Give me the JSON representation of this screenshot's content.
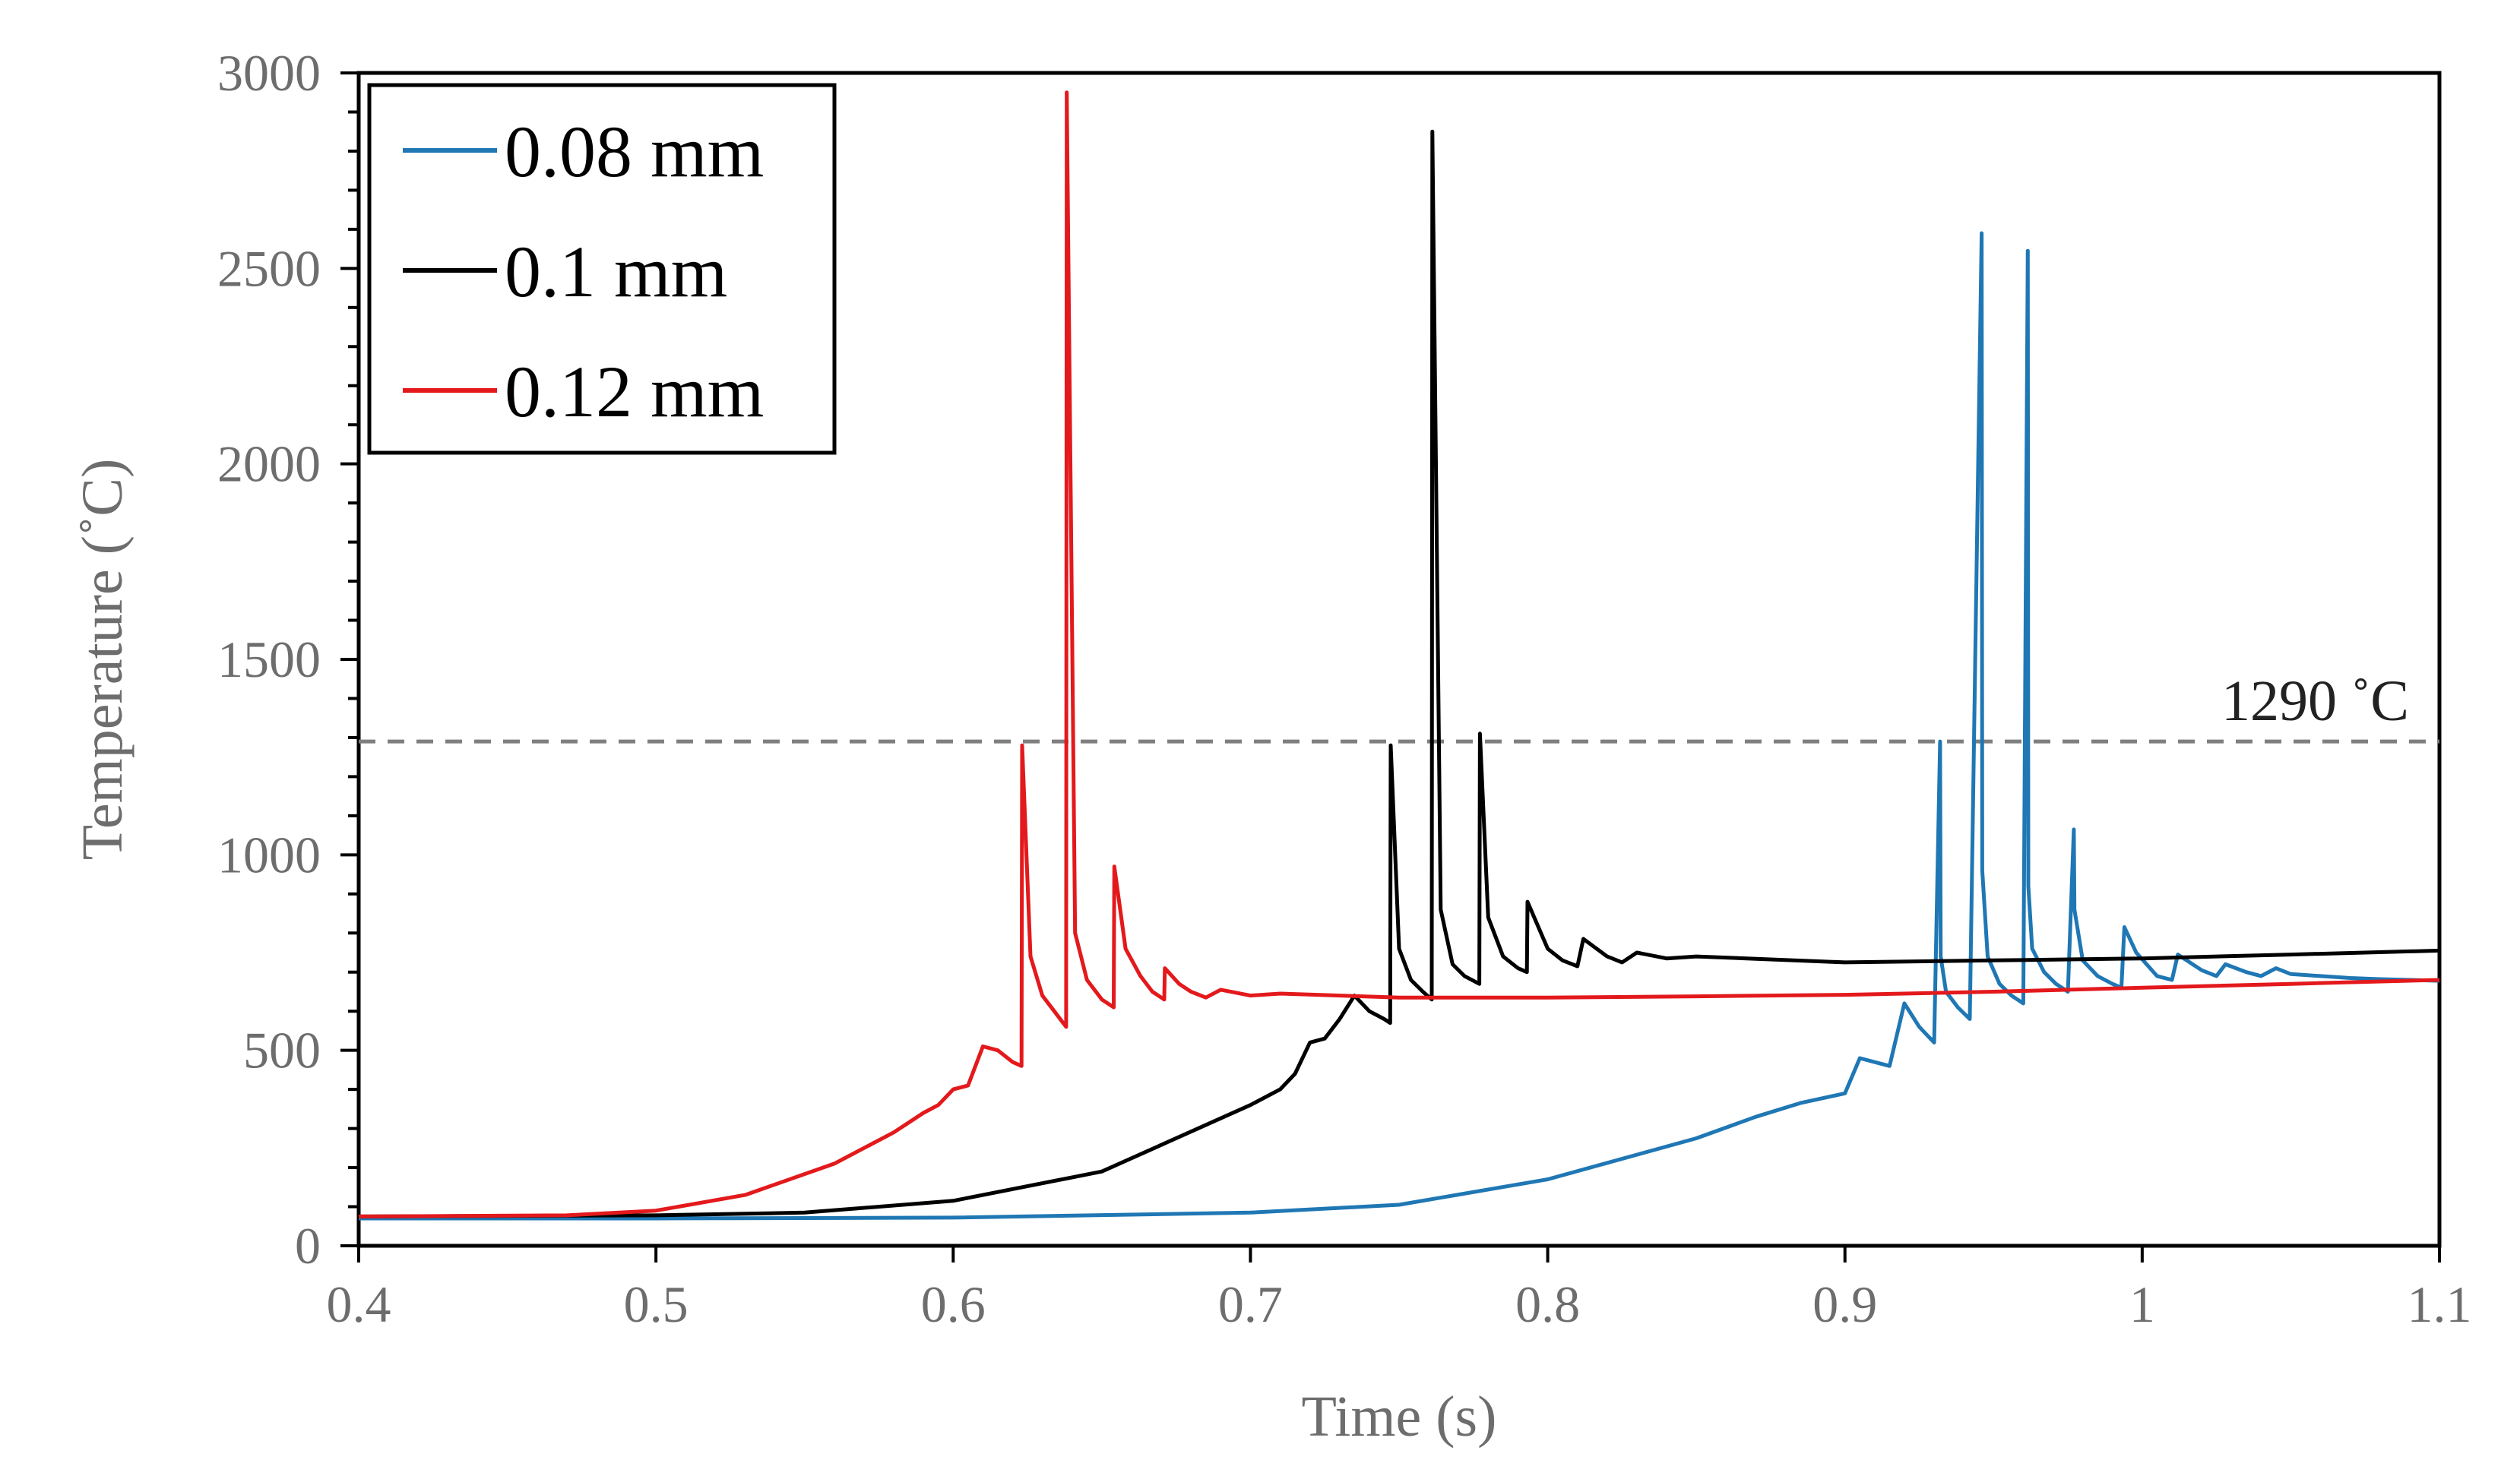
{
  "chart_data": {
    "type": "line",
    "title": "",
    "xlabel": "Time (s)",
    "ylabel": "Temperature (˚C)",
    "xlim": [
      0.4,
      1.1
    ],
    "ylim": [
      0,
      3000
    ],
    "xticks": [
      0.4,
      0.5,
      0.6,
      0.7,
      0.8,
      0.9,
      1.0,
      1.1
    ],
    "xtick_labels": [
      "0.4",
      "0.5",
      "0.6",
      "0.7",
      "0.8",
      "0.9",
      "1",
      "1.1"
    ],
    "yticks": [
      0,
      500,
      1000,
      1500,
      2000,
      2500,
      3000
    ],
    "ytick_labels": [
      "0",
      "500",
      "1000",
      "1500",
      "2000",
      "2500",
      "3000"
    ],
    "grid": false,
    "legend_position": "top-left",
    "reference_line": {
      "y": 1290,
      "label": "1290 ˚C",
      "color": "#7f7f7f",
      "style": "dashed"
    },
    "series": [
      {
        "name": "0.08 mm",
        "color": "#1f77b4",
        "x": [
          0.4,
          0.5,
          0.6,
          0.7,
          0.75,
          0.8,
          0.85,
          0.87,
          0.885,
          0.9,
          0.905,
          0.915,
          0.92,
          0.925,
          0.93,
          0.932,
          0.9322,
          0.934,
          0.938,
          0.942,
          0.946,
          0.9462,
          0.948,
          0.952,
          0.956,
          0.96,
          0.9615,
          0.9617,
          0.963,
          0.967,
          0.971,
          0.975,
          0.977,
          0.9772,
          0.98,
          0.985,
          0.99,
          0.993,
          0.994,
          0.998,
          1.005,
          1.01,
          1.012,
          1.02,
          1.025,
          1.028,
          1.035,
          1.04,
          1.045,
          1.05,
          1.06,
          1.07,
          1.08,
          1.09,
          1.1
        ],
        "y": [
          70,
          70,
          72,
          85,
          105,
          170,
          275,
          330,
          365,
          390,
          480,
          460,
          620,
          560,
          520,
          1290,
          740,
          650,
          610,
          580,
          2590,
          960,
          740,
          670,
          640,
          620,
          2545,
          920,
          760,
          700,
          670,
          650,
          1065,
          860,
          730,
          690,
          670,
          660,
          815,
          750,
          690,
          680,
          745,
          705,
          690,
          720,
          700,
          690,
          710,
          695,
          690,
          685,
          682,
          680,
          678
        ]
      },
      {
        "name": "0.1 mm",
        "color": "#000000",
        "x": [
          0.4,
          0.5,
          0.55,
          0.6,
          0.65,
          0.7,
          0.71,
          0.715,
          0.72,
          0.725,
          0.73,
          0.735,
          0.74,
          0.745,
          0.747,
          0.7472,
          0.75,
          0.754,
          0.758,
          0.761,
          0.7612,
          0.764,
          0.768,
          0.772,
          0.777,
          0.7772,
          0.78,
          0.785,
          0.79,
          0.793,
          0.7932,
          0.8,
          0.805,
          0.81,
          0.812,
          0.82,
          0.825,
          0.83,
          0.84,
          0.85,
          0.9,
          0.95,
          1.0,
          1.05,
          1.1
        ],
        "y": [
          75,
          78,
          85,
          115,
          190,
          360,
          400,
          440,
          520,
          530,
          580,
          640,
          600,
          580,
          570,
          1280,
          760,
          680,
          650,
          630,
          2850,
          860,
          720,
          690,
          670,
          1310,
          840,
          740,
          710,
          700,
          880,
          760,
          730,
          715,
          785,
          740,
          725,
          750,
          735,
          740,
          725,
          730,
          735,
          745,
          755
        ]
      },
      {
        "name": "0.12 mm",
        "color": "#e3191c",
        "x": [
          0.4,
          0.47,
          0.5,
          0.53,
          0.56,
          0.58,
          0.59,
          0.595,
          0.6,
          0.605,
          0.61,
          0.615,
          0.62,
          0.623,
          0.6232,
          0.626,
          0.63,
          0.634,
          0.638,
          0.6382,
          0.641,
          0.645,
          0.65,
          0.654,
          0.6542,
          0.658,
          0.663,
          0.667,
          0.671,
          0.6712,
          0.676,
          0.68,
          0.685,
          0.69,
          0.7,
          0.71,
          0.75,
          0.8,
          0.85,
          0.9,
          0.95,
          1.0,
          1.05,
          1.1
        ],
        "y": [
          75,
          78,
          90,
          130,
          210,
          290,
          340,
          360,
          400,
          410,
          510,
          500,
          470,
          460,
          1280,
          740,
          640,
          600,
          560,
          2950,
          800,
          680,
          630,
          610,
          970,
          760,
          690,
          650,
          630,
          710,
          670,
          650,
          635,
          655,
          640,
          645,
          635,
          635,
          638,
          642,
          650,
          660,
          670,
          680
        ]
      }
    ]
  }
}
